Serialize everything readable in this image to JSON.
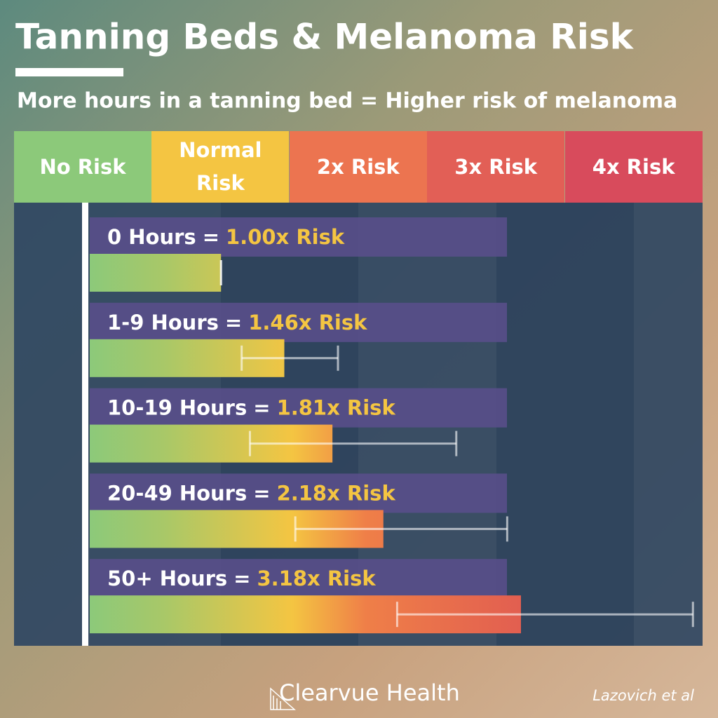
{
  "chart_data": {
    "type": "bar",
    "orientation": "horizontal",
    "title": "Tanning Beds & Melanoma Risk",
    "subtitle": "More hours in a tanning bed = Higher risk of melanoma",
    "zones": [
      {
        "label": "No Risk",
        "color": "#8cc97a"
      },
      {
        "label": "Normal Risk",
        "color": "#f4c542"
      },
      {
        "label": "2x Risk",
        "color": "#ec7450"
      },
      {
        "label": "3x Risk",
        "color": "#e25f56"
      },
      {
        "label": "4x Risk",
        "color": "#d84b5c"
      }
    ],
    "categories": [
      "0 Hours",
      "1-9 Hours",
      "10-19 Hours",
      "20-49 Hours",
      "50+ Hours"
    ],
    "label_separator": "=",
    "values": [
      1.0,
      1.46,
      1.81,
      2.18,
      3.18
    ],
    "value_labels": [
      "1.00x Risk",
      "1.46x Risk",
      "1.81x Risk",
      "2.18x Risk",
      "3.18x Risk"
    ],
    "ci_low": [
      1.0,
      1.15,
      1.21,
      1.54,
      2.28
    ],
    "ci_high": [
      1.0,
      1.85,
      2.71,
      3.08,
      4.43
    ],
    "xlim": [
      0,
      4.5
    ],
    "brand": "Clearvue Health",
    "source": "Lazovich et al"
  }
}
